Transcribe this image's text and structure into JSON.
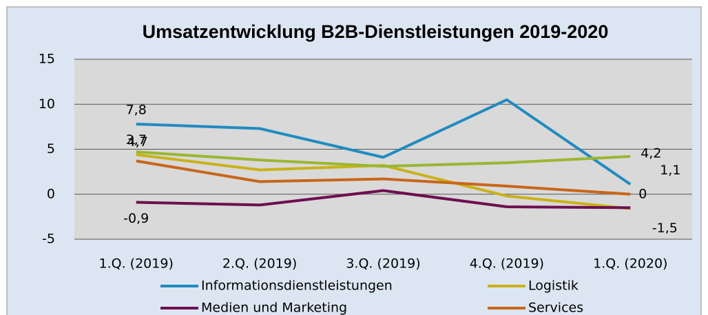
{
  "chart_data": {
    "type": "line",
    "title": "Umsatzentwicklung B2B-Dienstleistungen 2019-2020",
    "categories": [
      "1.Q. (2019)",
      "2.Q. (2019)",
      "3.Q. (2019)",
      "4.Q. (2019)",
      "1.Q. (2020)"
    ],
    "ylim": [
      -5,
      15
    ],
    "yticks": [
      -5,
      0,
      5,
      10,
      15
    ],
    "grid": true,
    "series": [
      {
        "name": "Informationsdienstleistungen",
        "color": "#218bbf",
        "values": [
          7.8,
          7.3,
          4.1,
          10.5,
          1.1
        ],
        "value_labels": [
          "7,8",
          null,
          null,
          null,
          "1,1"
        ]
      },
      {
        "name": "Logistik",
        "color": "#c9b218",
        "values": [
          4.4,
          2.7,
          3.2,
          -0.2,
          -1.6
        ]
      },
      {
        "name": "Medien und Marketing",
        "color": "#6e0f4f",
        "values": [
          -0.9,
          -1.2,
          0.4,
          -1.4,
          -1.5
        ],
        "value_labels": [
          "-0,9",
          null,
          null,
          null,
          "-1,5"
        ]
      },
      {
        "name": "Services",
        "color": "#c8661a",
        "values": [
          3.7,
          1.4,
          1.7,
          0.9,
          0.0
        ],
        "value_labels": [
          "3,7",
          null,
          null,
          null,
          "0"
        ]
      },
      {
        "color": "#9bb630",
        "values": [
          4.7,
          3.8,
          3.1,
          3.5,
          4.2
        ],
        "value_labels": [
          "4,7",
          null,
          null,
          null,
          "4,2"
        ]
      }
    ]
  }
}
